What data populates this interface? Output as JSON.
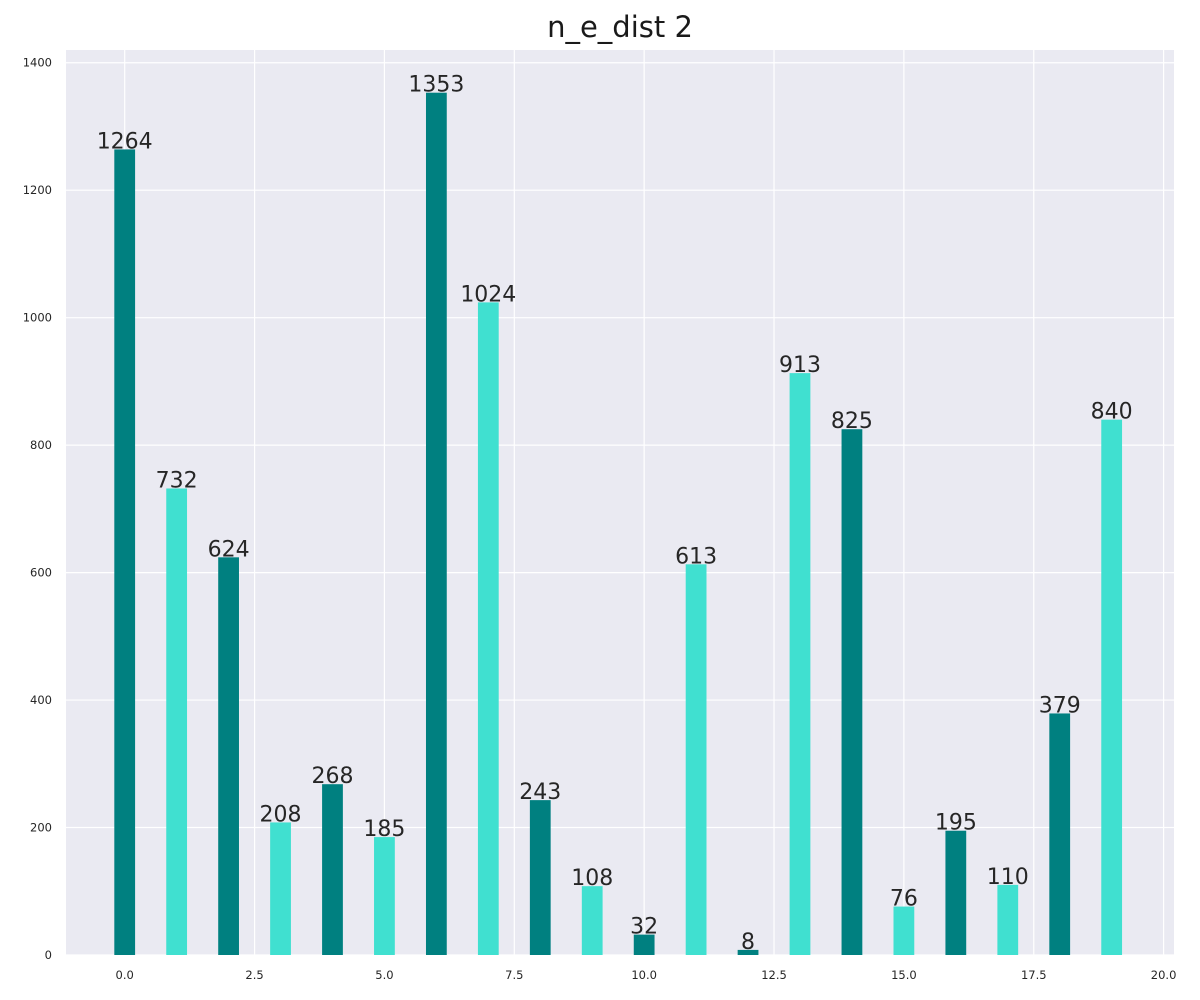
{
  "chart_data": {
    "type": "bar",
    "title": "n_e_dist 2",
    "xlabel": "",
    "ylabel": "",
    "x": [
      0,
      1,
      2,
      3,
      4,
      5,
      6,
      7,
      8,
      9,
      10,
      11,
      12,
      13,
      14,
      15,
      16,
      17,
      18,
      19
    ],
    "values": [
      1264,
      732,
      624,
      208,
      268,
      185,
      1353,
      1024,
      243,
      108,
      32,
      613,
      8,
      913,
      825,
      76,
      195,
      110,
      379,
      840
    ],
    "bar_colors": [
      "#008080",
      "#40e0d0"
    ],
    "xlim": [
      -1.13,
      20.2
    ],
    "ylim": [
      0,
      1420
    ],
    "xticks": [
      0.0,
      2.5,
      5.0,
      7.5,
      10.0,
      12.5,
      15.0,
      17.5,
      20.0
    ],
    "xtick_labels": [
      "0.0",
      "2.5",
      "5.0",
      "7.5",
      "10.0",
      "12.5",
      "15.0",
      "17.5",
      "20.0"
    ],
    "yticks": [
      0,
      200,
      400,
      600,
      800,
      1000,
      1200,
      1400
    ],
    "ytick_labels": [
      "0",
      "200",
      "400",
      "600",
      "800",
      "1000",
      "1200",
      "1400"
    ],
    "grid": true,
    "background_color": "#eaeaf2",
    "grid_color": "#ffffff"
  }
}
